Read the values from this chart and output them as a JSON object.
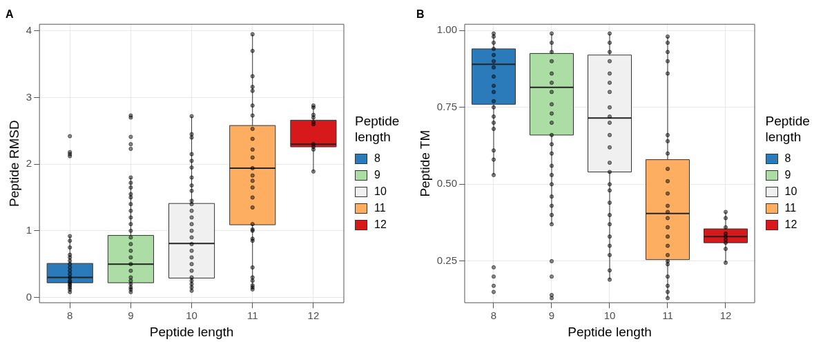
{
  "chart_data": [
    {
      "type": "box",
      "title": "A",
      "xlabel": "Peptide length",
      "ylabel": "Peptide RMSD",
      "legend_title": "Peptide length",
      "legend": "right",
      "grid": true,
      "categories": [
        "8",
        "9",
        "10",
        "11",
        "12"
      ],
      "ylim": [
        -0.08,
        4.1
      ],
      "yticks": [
        0,
        1,
        2,
        3,
        4
      ],
      "series": [
        {
          "name": "8",
          "color": "#2b7bba",
          "boxes": [
            {
              "low": 0.08,
              "q1": 0.22,
              "median": 0.3,
              "q3": 0.51,
              "high": 0.92
            },
            null,
            null,
            null,
            null
          ]
        },
        {
          "name": "9",
          "color": "#abdda4",
          "boxes": [
            null,
            {
              "low": 0.08,
              "q1": 0.22,
              "median": 0.5,
              "q3": 0.93,
              "high": 1.8
            },
            null,
            null,
            null
          ]
        },
        {
          "name": "10",
          "color": "#f0f0f0",
          "boxes": [
            null,
            null,
            {
              "low": 0.1,
              "q1": 0.29,
              "median": 0.81,
              "q3": 1.41,
              "high": 2.72
            },
            null,
            null
          ]
        },
        {
          "name": "11",
          "color": "#fdae61",
          "boxes": [
            null,
            null,
            null,
            {
              "low": 0.12,
              "q1": 1.09,
              "median": 1.94,
              "q3": 2.58,
              "high": 3.95
            },
            null
          ]
        },
        {
          "name": "12",
          "color": "#d7191c",
          "boxes": [
            null,
            null,
            null,
            null,
            {
              "low": 1.89,
              "q1": 2.26,
              "median": 2.3,
              "q3": 2.66,
              "high": 2.88
            }
          ]
        },
        {
          "type": "scatter",
          "color": "#000000",
          "x": [
            "8",
            "8",
            "8",
            "8",
            "8",
            "8",
            "8",
            "8",
            "8",
            "8",
            "8",
            "8",
            "8",
            "8",
            "8",
            "8",
            "8",
            "8",
            "8",
            "8",
            "8",
            "8",
            "9",
            "9",
            "9",
            "9",
            "9",
            "9",
            "9",
            "9",
            "9",
            "9",
            "9",
            "9",
            "9",
            "9",
            "9",
            "9",
            "9",
            "9",
            "9",
            "9",
            "9",
            "9",
            "9",
            "9",
            "9",
            "9",
            "9",
            "10",
            "10",
            "10",
            "10",
            "10",
            "10",
            "10",
            "10",
            "10",
            "10",
            "10",
            "10",
            "10",
            "10",
            "10",
            "10",
            "10",
            "10",
            "10",
            "10",
            "10",
            "10",
            "10",
            "10",
            "10",
            "10",
            "11",
            "11",
            "11",
            "11",
            "11",
            "11",
            "11",
            "11",
            "11",
            "11",
            "11",
            "11",
            "11",
            "11",
            "11",
            "11",
            "11",
            "11",
            "11",
            "11",
            "11",
            "11",
            "11",
            "11",
            "11",
            "11",
            "11",
            "11",
            "12",
            "12",
            "12",
            "12",
            "12",
            "12",
            "12",
            "12",
            "12",
            "12"
          ],
          "values": [
            0.08,
            0.12,
            0.15,
            0.18,
            0.2,
            0.23,
            0.25,
            0.3,
            0.35,
            0.4,
            0.45,
            0.5,
            0.55,
            0.6,
            0.64,
            0.75,
            0.85,
            0.92,
            2.12,
            2.15,
            2.18,
            2.42,
            0.08,
            0.12,
            0.15,
            0.2,
            0.25,
            0.3,
            0.4,
            0.5,
            0.6,
            0.7,
            0.8,
            0.9,
            1.0,
            1.1,
            1.2,
            1.3,
            1.4,
            1.5,
            1.55,
            1.65,
            1.72,
            1.8,
            2.23,
            2.3,
            2.41,
            2.7,
            2.73,
            0.1,
            0.15,
            0.2,
            0.25,
            0.3,
            0.4,
            0.5,
            0.6,
            0.7,
            0.8,
            0.9,
            1.0,
            1.1,
            1.2,
            1.3,
            1.4,
            1.45,
            1.6,
            1.68,
            1.8,
            1.95,
            2.05,
            2.15,
            2.4,
            2.45,
            2.72,
            0.12,
            0.15,
            0.18,
            0.25,
            0.3,
            0.45,
            0.85,
            0.88,
            1.0,
            1.02,
            1.1,
            1.35,
            1.5,
            1.65,
            1.75,
            1.83,
            1.94,
            2.1,
            2.22,
            2.38,
            2.53,
            2.73,
            2.88,
            3.1,
            3.16,
            3.32,
            3.7,
            3.95,
            1.89,
            2.22,
            2.26,
            2.3,
            2.6,
            2.63,
            2.7,
            2.74,
            2.85,
            2.88
          ]
        }
      ]
    },
    {
      "type": "box",
      "title": "B",
      "xlabel": "Peptide length",
      "ylabel": "Peptide TM",
      "legend_title": "Peptide length",
      "legend": "right",
      "grid": true,
      "categories": [
        "8",
        "9",
        "10",
        "11",
        "12"
      ],
      "ylim": [
        0.115,
        1.02
      ],
      "yticks": [
        {
          "value": 0.25,
          "label": "0.25"
        },
        {
          "value": 0.5,
          "label": "0.50"
        },
        {
          "value": 0.75,
          "label": "0.75"
        },
        {
          "value": 1,
          "label": "1.00"
        }
      ],
      "series": [
        {
          "name": "8",
          "color": "#2b7bba",
          "boxes": [
            {
              "low": 0.53,
              "q1": 0.76,
              "median": 0.89,
              "q3": 0.94,
              "high": 0.99
            },
            null,
            null,
            null,
            null
          ]
        },
        {
          "name": "9",
          "color": "#abdda4",
          "boxes": [
            null,
            {
              "low": 0.37,
              "q1": 0.66,
              "median": 0.815,
              "q3": 0.925,
              "high": 0.99
            },
            null,
            null,
            null
          ]
        },
        {
          "name": "10",
          "color": "#f0f0f0",
          "boxes": [
            null,
            null,
            {
              "low": 0.19,
              "q1": 0.54,
              "median": 0.715,
              "q3": 0.92,
              "high": 0.99
            },
            null,
            null
          ]
        },
        {
          "name": "11",
          "color": "#fdae61",
          "boxes": [
            null,
            null,
            null,
            {
              "low": 0.13,
              "q1": 0.255,
              "median": 0.405,
              "q3": 0.58,
              "high": 0.98
            },
            null
          ]
        },
        {
          "name": "12",
          "color": "#d7191c",
          "boxes": [
            null,
            null,
            null,
            null,
            {
              "low": 0.245,
              "q1": 0.31,
              "median": 0.33,
              "q3": 0.355,
              "high": 0.41
            }
          ]
        },
        {
          "type": "scatter",
          "color": "#000000",
          "x": [
            "8",
            "8",
            "8",
            "8",
            "8",
            "8",
            "8",
            "8",
            "8",
            "8",
            "8",
            "8",
            "8",
            "8",
            "8",
            "8",
            "8",
            "8",
            "8",
            "8",
            "8",
            "8",
            "9",
            "9",
            "9",
            "9",
            "9",
            "9",
            "9",
            "9",
            "9",
            "9",
            "9",
            "9",
            "9",
            "9",
            "9",
            "9",
            "9",
            "9",
            "9",
            "9",
            "9",
            "9",
            "9",
            "9",
            "10",
            "10",
            "10",
            "10",
            "10",
            "10",
            "10",
            "10",
            "10",
            "10",
            "10",
            "10",
            "10",
            "10",
            "10",
            "10",
            "10",
            "10",
            "10",
            "10",
            "10",
            "10",
            "10",
            "10",
            "11",
            "11",
            "11",
            "11",
            "11",
            "11",
            "11",
            "11",
            "11",
            "11",
            "11",
            "11",
            "11",
            "11",
            "11",
            "11",
            "11",
            "11",
            "11",
            "11",
            "11",
            "11",
            "11",
            "11",
            "12",
            "12",
            "12",
            "12",
            "12",
            "12",
            "12",
            "12",
            "12"
          ],
          "values": [
            0.15,
            0.17,
            0.2,
            0.23,
            0.53,
            0.58,
            0.61,
            0.68,
            0.7,
            0.72,
            0.75,
            0.77,
            0.8,
            0.82,
            0.85,
            0.88,
            0.9,
            0.92,
            0.94,
            0.96,
            0.98,
            0.99,
            0.13,
            0.14,
            0.2,
            0.25,
            0.37,
            0.4,
            0.43,
            0.46,
            0.5,
            0.53,
            0.56,
            0.6,
            0.63,
            0.66,
            0.7,
            0.73,
            0.76,
            0.8,
            0.83,
            0.86,
            0.9,
            0.93,
            0.96,
            0.99,
            0.19,
            0.22,
            0.27,
            0.3,
            0.33,
            0.37,
            0.4,
            0.44,
            0.48,
            0.5,
            0.54,
            0.57,
            0.62,
            0.66,
            0.7,
            0.72,
            0.75,
            0.8,
            0.83,
            0.86,
            0.9,
            0.93,
            0.96,
            0.99,
            0.13,
            0.15,
            0.17,
            0.2,
            0.24,
            0.25,
            0.27,
            0.3,
            0.33,
            0.36,
            0.39,
            0.41,
            0.43,
            0.47,
            0.51,
            0.55,
            0.6,
            0.64,
            0.66,
            0.86,
            0.9,
            0.93,
            0.96,
            0.98,
            0.245,
            0.29,
            0.31,
            0.32,
            0.33,
            0.34,
            0.36,
            0.39,
            0.41
          ]
        }
      ]
    }
  ]
}
